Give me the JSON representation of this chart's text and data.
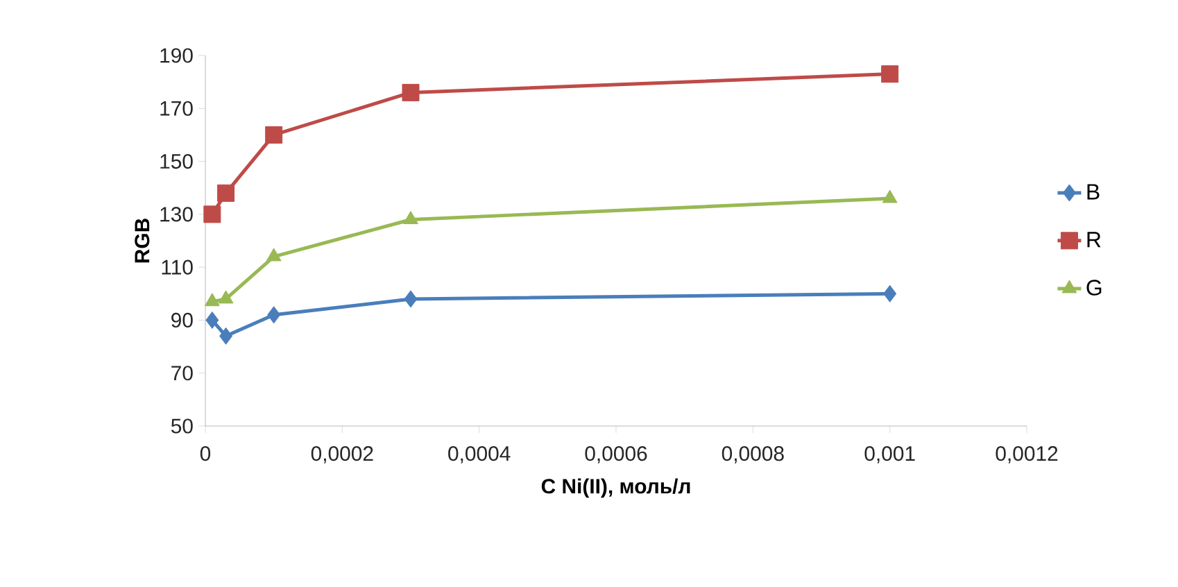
{
  "chart_data": {
    "type": "line",
    "xlabel": "C Ni(II), моль/л",
    "ylabel": "RGB",
    "xlim": [
      0,
      0.0012
    ],
    "ylim": [
      50,
      190
    ],
    "xticks": [
      0,
      {
        "value": 0.0002,
        "label": "0,0002"
      },
      {
        "value": 0.0004,
        "label": "0,0004"
      },
      {
        "value": 0.0006,
        "label": "0,0006"
      },
      {
        "value": 0.0008,
        "label": "0,0008"
      },
      {
        "value": 0.001,
        "label": "0,001"
      },
      {
        "value": 0.0012,
        "label": "0,0012"
      }
    ],
    "yticks": [
      50,
      70,
      90,
      110,
      130,
      150,
      170,
      190
    ],
    "x": [
      1e-05,
      3e-05,
      0.0001,
      0.0003,
      0.001
    ],
    "legend": "right",
    "grid": false,
    "series": [
      {
        "name": "B",
        "color": "#4a7ebb",
        "marker": "diamond",
        "values": [
          90,
          84,
          92,
          98,
          100
        ]
      },
      {
        "name": "R",
        "color": "#be4b48",
        "marker": "square",
        "values": [
          130,
          138,
          160,
          176,
          183
        ]
      },
      {
        "name": "G",
        "color": "#98b954",
        "marker": "triangle",
        "values": [
          97,
          98,
          114,
          128,
          136
        ]
      }
    ]
  }
}
